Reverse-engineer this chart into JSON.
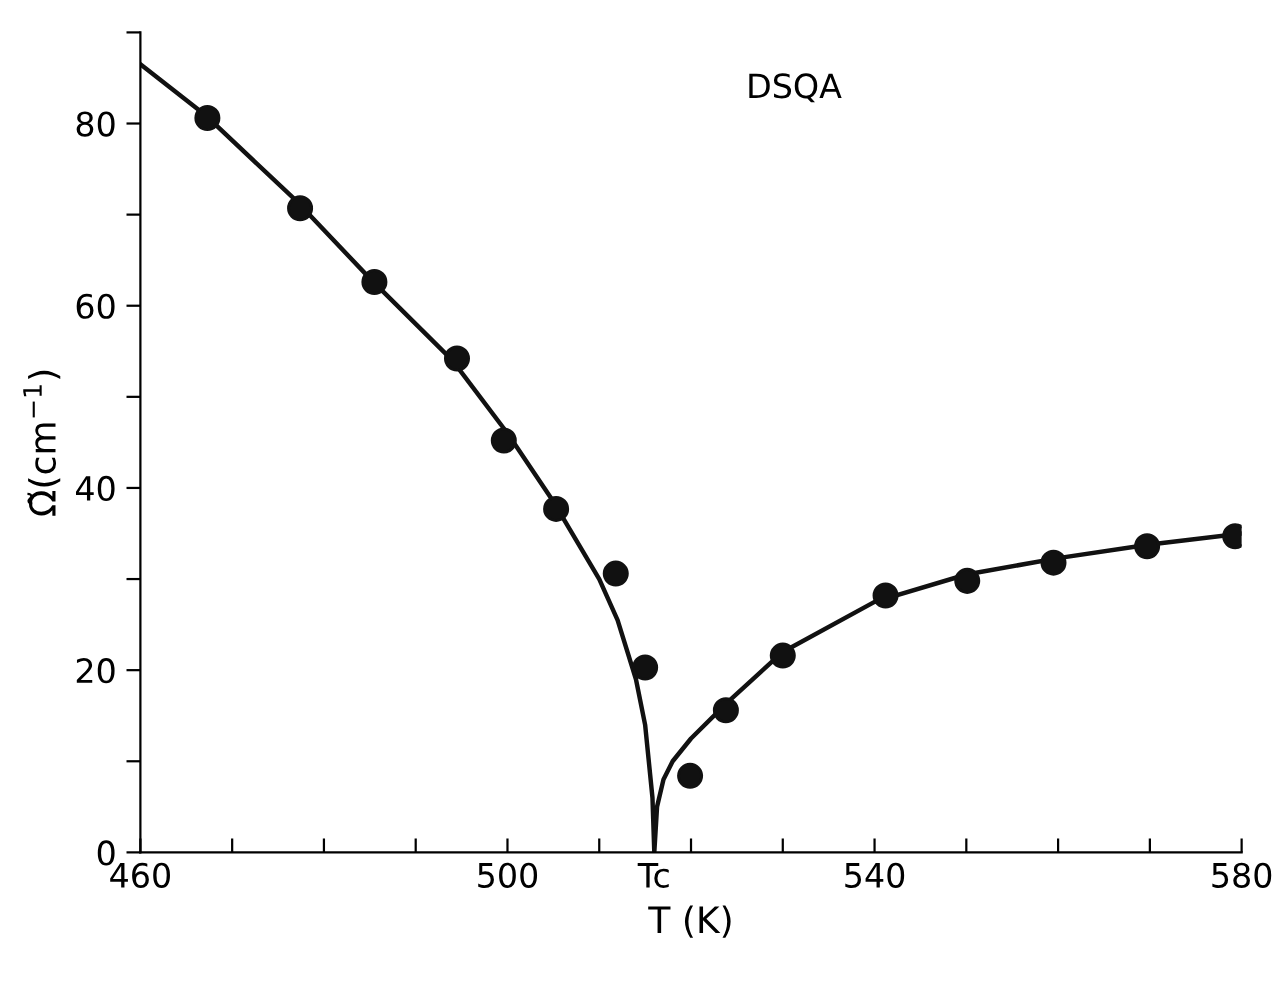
{
  "chart_data": {
    "type": "scatter",
    "xlabel": "T (K)",
    "ylabel": "Ω̃(cm$^{−1}$)",
    "annotations": [
      "DSQA"
    ],
    "xlim": [
      460,
      580
    ],
    "ylim": [
      0,
      90
    ],
    "xticks": [
      460,
      {
        "value": 470,
        "label": null
      },
      {
        "value": 480,
        "label": null
      },
      {
        "value": 490,
        "label": null
      },
      500,
      {
        "value": 510,
        "label": null
      },
      {
        "value": 516,
        "label": "Tc"
      },
      {
        "value": 520,
        "label": null
      },
      {
        "value": 530,
        "label": null
      },
      540,
      {
        "value": 550,
        "label": null
      },
      {
        "value": 560,
        "label": null
      },
      {
        "value": 570,
        "label": null
      },
      580
    ],
    "yticks": [
      0,
      {
        "value": 10,
        "label": null
      },
      20,
      {
        "value": 30,
        "label": null
      },
      40,
      {
        "value": 50,
        "label": null
      },
      60,
      {
        "value": 70,
        "label": null
      },
      80,
      {
        "value": 90,
        "label": null
      }
    ],
    "grid": false,
    "legend": false,
    "series": [
      {
        "color": "#111111",
        "marker": "circle",
        "x": [
          467.3,
          477.4,
          485.5,
          494.5,
          499.6,
          505.3,
          511.8,
          515,
          519.9,
          523.8,
          530,
          541.2,
          550.1,
          559.5,
          569.7,
          579.3
        ],
        "values": [
          80.6,
          70.7,
          62.6,
          54.2,
          45.2,
          37.7,
          30.6,
          20.3,
          8.4,
          15.6,
          21.6,
          28.2,
          29.8,
          31.8,
          33.6,
          34.7
        ]
      },
      {
        "type": "line",
        "color": "#111111",
        "line_style": "solid",
        "marker": "none",
        "x": [
          460,
          467,
          477,
          485,
          494,
          500,
          505,
          510,
          512,
          514,
          515,
          515.8,
          516,
          516.3,
          517,
          518,
          520,
          524,
          530,
          540,
          550,
          560,
          570,
          580
        ],
        "values": [
          86.5,
          81,
          71.5,
          63,
          54,
          46,
          38.5,
          30,
          25.5,
          19,
          14,
          6,
          0,
          5,
          8,
          10,
          12.5,
          16.5,
          22,
          27.5,
          30.5,
          32.3,
          33.8,
          35
        ]
      }
    ]
  }
}
